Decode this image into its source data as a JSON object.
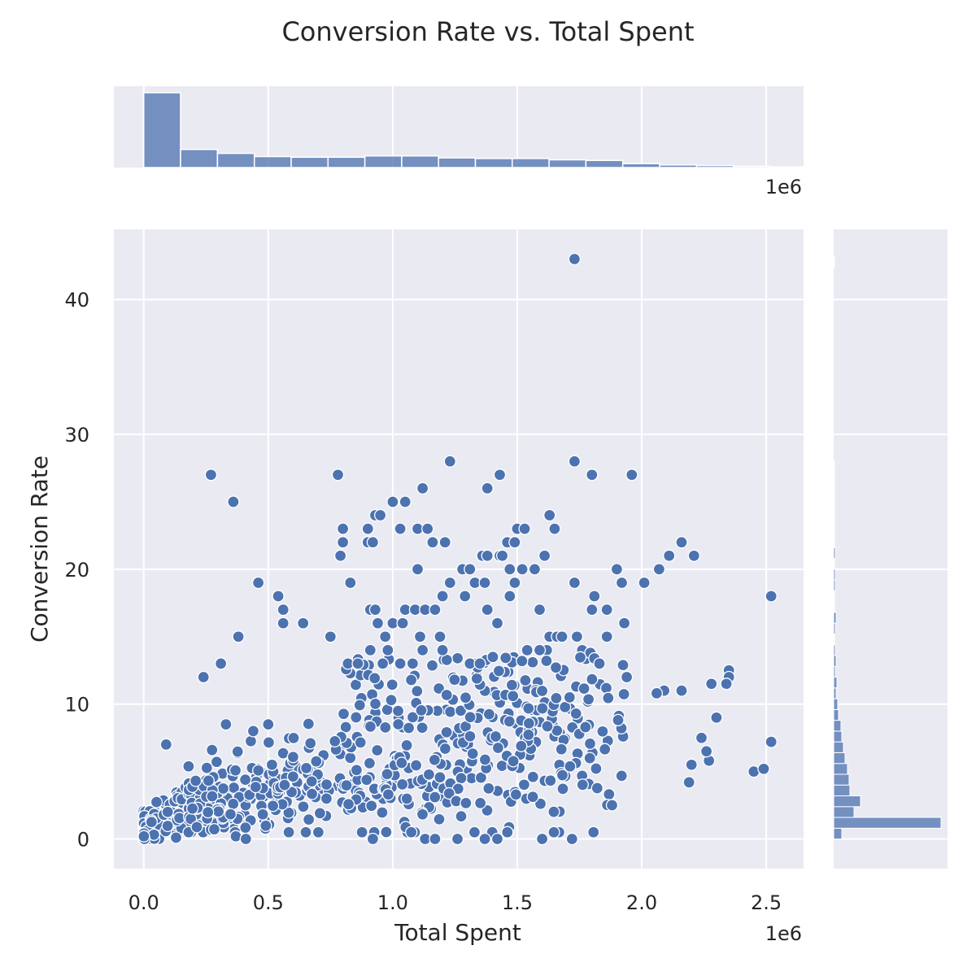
{
  "chart_data": {
    "type": "scatter",
    "title": "Conversion Rate vs. Total Spent",
    "xlabel": "Total Spent",
    "ylabel": "Conversion Rate",
    "x_offset_label": "1e6",
    "x_unit_scale": 1000000,
    "xlim": [
      -0.12,
      2.65
    ],
    "ylim": [
      -2.2,
      45.2
    ],
    "x_ticks": [
      0.0,
      0.5,
      1.0,
      1.5,
      2.0,
      2.5
    ],
    "x_tick_labels": [
      "0.0",
      "0.5",
      "1.0",
      "1.5",
      "2.0",
      "2.5"
    ],
    "y_ticks": [
      0,
      10,
      20,
      30,
      40
    ],
    "y_tick_labels": [
      "0",
      "10",
      "20",
      "30",
      "40"
    ],
    "grid": true,
    "marker_color": "#4c72b0",
    "hist_color": "#4c72b0",
    "background_color": "#eaeaf2",
    "outliers": [
      [
        1.73,
        43
      ],
      [
        1.23,
        28
      ],
      [
        1.73,
        28
      ],
      [
        0.27,
        27
      ],
      [
        0.78,
        27
      ],
      [
        1.43,
        27
      ],
      [
        1.8,
        27
      ],
      [
        1.96,
        27
      ],
      [
        1.38,
        26
      ],
      [
        1.12,
        26
      ],
      [
        0.36,
        25
      ],
      [
        1.0,
        25
      ],
      [
        1.05,
        25
      ],
      [
        0.93,
        24
      ],
      [
        0.95,
        24
      ],
      [
        1.63,
        24
      ],
      [
        0.8,
        23
      ],
      [
        0.9,
        23
      ],
      [
        1.03,
        23
      ],
      [
        1.1,
        23
      ],
      [
        1.14,
        23
      ],
      [
        1.5,
        23
      ],
      [
        1.53,
        23
      ],
      [
        1.65,
        23
      ],
      [
        0.8,
        22
      ],
      [
        0.9,
        22
      ],
      [
        0.92,
        22
      ],
      [
        1.16,
        22
      ],
      [
        1.21,
        22
      ],
      [
        1.46,
        22
      ],
      [
        1.49,
        22
      ],
      [
        2.16,
        22
      ],
      [
        0.79,
        21
      ],
      [
        1.36,
        21
      ],
      [
        1.38,
        21
      ],
      [
        1.43,
        21
      ],
      [
        1.44,
        21
      ],
      [
        1.61,
        21
      ],
      [
        2.11,
        21
      ],
      [
        2.21,
        21
      ],
      [
        1.1,
        20
      ],
      [
        1.28,
        20
      ],
      [
        1.31,
        20
      ],
      [
        1.47,
        20
      ],
      [
        1.52,
        20
      ],
      [
        1.57,
        20
      ],
      [
        1.9,
        20
      ],
      [
        2.07,
        20
      ],
      [
        0.46,
        19
      ],
      [
        0.83,
        19
      ],
      [
        1.23,
        19
      ],
      [
        1.33,
        19
      ],
      [
        1.37,
        19
      ],
      [
        1.49,
        19
      ],
      [
        1.73,
        19
      ],
      [
        1.92,
        19
      ],
      [
        2.01,
        19
      ],
      [
        2.52,
        18
      ],
      [
        0.54,
        18
      ],
      [
        1.2,
        18
      ],
      [
        1.29,
        18
      ],
      [
        1.47,
        18
      ],
      [
        1.81,
        18
      ],
      [
        0.56,
        17
      ],
      [
        0.91,
        17
      ],
      [
        0.93,
        17
      ],
      [
        1.05,
        17
      ],
      [
        1.09,
        17
      ],
      [
        1.13,
        17
      ],
      [
        1.17,
        17
      ],
      [
        1.38,
        17
      ],
      [
        1.59,
        17
      ],
      [
        1.8,
        17
      ],
      [
        1.86,
        17
      ],
      [
        0.38,
        15
      ],
      [
        0.56,
        16
      ],
      [
        0.64,
        16
      ],
      [
        0.75,
        15
      ],
      [
        0.94,
        16
      ],
      [
        0.97,
        15
      ],
      [
        1.0,
        16
      ],
      [
        1.04,
        16
      ],
      [
        1.11,
        15
      ],
      [
        1.19,
        15
      ],
      [
        1.42,
        16
      ],
      [
        1.63,
        15
      ],
      [
        1.66,
        15
      ],
      [
        1.68,
        15
      ],
      [
        1.74,
        15
      ],
      [
        1.86,
        15
      ],
      [
        1.93,
        16
      ],
      [
        0.24,
        12
      ],
      [
        0.31,
        13
      ],
      [
        0.82,
        13
      ],
      [
        0.86,
        13
      ],
      [
        0.91,
        14
      ],
      [
        0.96,
        13
      ],
      [
        0.98,
        14
      ],
      [
        1.03,
        13
      ],
      [
        1.08,
        13
      ],
      [
        1.12,
        14
      ],
      [
        1.2,
        14
      ],
      [
        1.31,
        13
      ],
      [
        1.35,
        13
      ],
      [
        1.54,
        14
      ],
      [
        1.59,
        14
      ],
      [
        1.83,
        13
      ],
      [
        1.94,
        12
      ],
      [
        2.35,
        12.5
      ],
      [
        2.35,
        12
      ],
      [
        2.34,
        11.5
      ],
      [
        2.28,
        11.5
      ],
      [
        2.16,
        11
      ],
      [
        2.09,
        11
      ],
      [
        2.06,
        10.8
      ],
      [
        0.09,
        7
      ],
      [
        0.33,
        8.5
      ],
      [
        0.44,
        8
      ],
      [
        0.5,
        8.5
      ],
      [
        2.52,
        7.2
      ],
      [
        2.45,
        5
      ],
      [
        2.49,
        5.2
      ],
      [
        2.3,
        9
      ],
      [
        2.27,
        5.8
      ],
      [
        2.2,
        5.5
      ],
      [
        2.19,
        4.2
      ],
      [
        2.24,
        7.5
      ],
      [
        2.26,
        6.5
      ],
      [
        0.92,
        0
      ],
      [
        1.13,
        0
      ],
      [
        1.17,
        0
      ],
      [
        1.26,
        0
      ],
      [
        1.37,
        0
      ],
      [
        1.42,
        0
      ],
      [
        1.6,
        0
      ],
      [
        1.72,
        0
      ],
      [
        0.37,
        0.2
      ],
      [
        0.41,
        0
      ],
      [
        0.13,
        0.1
      ]
    ],
    "x_hist": {
      "bin_start": 0.0,
      "bin_width": 0.148,
      "counts": [
        116,
        28,
        22,
        17,
        16,
        16,
        18,
        18,
        15,
        14,
        14,
        12,
        11,
        6,
        4,
        3,
        2,
        1
      ],
      "count_max": 116
    },
    "y_hist": {
      "bin_start": 0.0,
      "bin_width": 0.8,
      "counts": [
        10,
        132,
        25,
        33,
        20,
        19,
        17,
        14,
        12,
        10,
        9,
        6,
        5,
        3,
        4,
        2,
        3,
        2,
        1,
        2,
        3,
        1,
        1,
        2,
        2,
        1,
        2,
        1,
        1,
        1,
        1,
        1,
        1,
        1,
        1,
        0,
        0,
        0,
        0,
        0,
        0,
        0,
        0,
        0,
        0,
        0,
        0,
        0,
        0,
        0,
        0,
        0,
        0,
        1
      ],
      "count_max": 132
    }
  }
}
